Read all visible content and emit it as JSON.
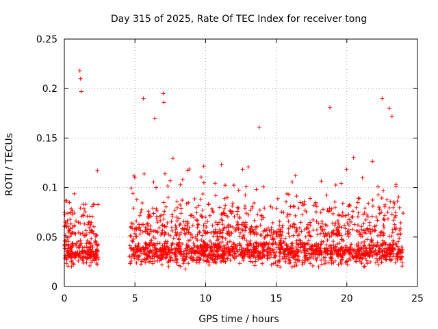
{
  "chart_data": {
    "type": "scatter",
    "title": "Day 315 of 2025, Rate Of TEC Index for receiver tong",
    "xlabel": "GPS time / hours",
    "ylabel": "ROTI / TECUs",
    "xlim": [
      0,
      25
    ],
    "ylim": [
      0,
      0.25
    ],
    "xticks": [
      0,
      5,
      10,
      15,
      20,
      25
    ],
    "yticks": [
      0,
      0.05,
      0.1,
      0.15,
      0.2,
      0.25
    ],
    "xtick_labels": [
      "0",
      "5",
      "10",
      "15",
      "20",
      "25"
    ],
    "ytick_labels": [
      "0",
      "0.05",
      "0.1",
      "0.15",
      "0.2",
      "0.25"
    ],
    "grid": true,
    "marker": "+",
    "color": "#ff0000",
    "data_gap_hours": [
      2.4,
      4.6
    ],
    "notable_points": [
      {
        "x": 1.1,
        "y": 0.218
      },
      {
        "x": 1.15,
        "y": 0.21
      },
      {
        "x": 1.2,
        "y": 0.197
      },
      {
        "x": 5.6,
        "y": 0.19
      },
      {
        "x": 6.4,
        "y": 0.17
      },
      {
        "x": 7.0,
        "y": 0.195
      },
      {
        "x": 7.05,
        "y": 0.186
      },
      {
        "x": 13.8,
        "y": 0.161
      },
      {
        "x": 18.8,
        "y": 0.181
      },
      {
        "x": 22.5,
        "y": 0.19
      },
      {
        "x": 23.0,
        "y": 0.18
      },
      {
        "x": 23.2,
        "y": 0.172
      }
    ]
  }
}
